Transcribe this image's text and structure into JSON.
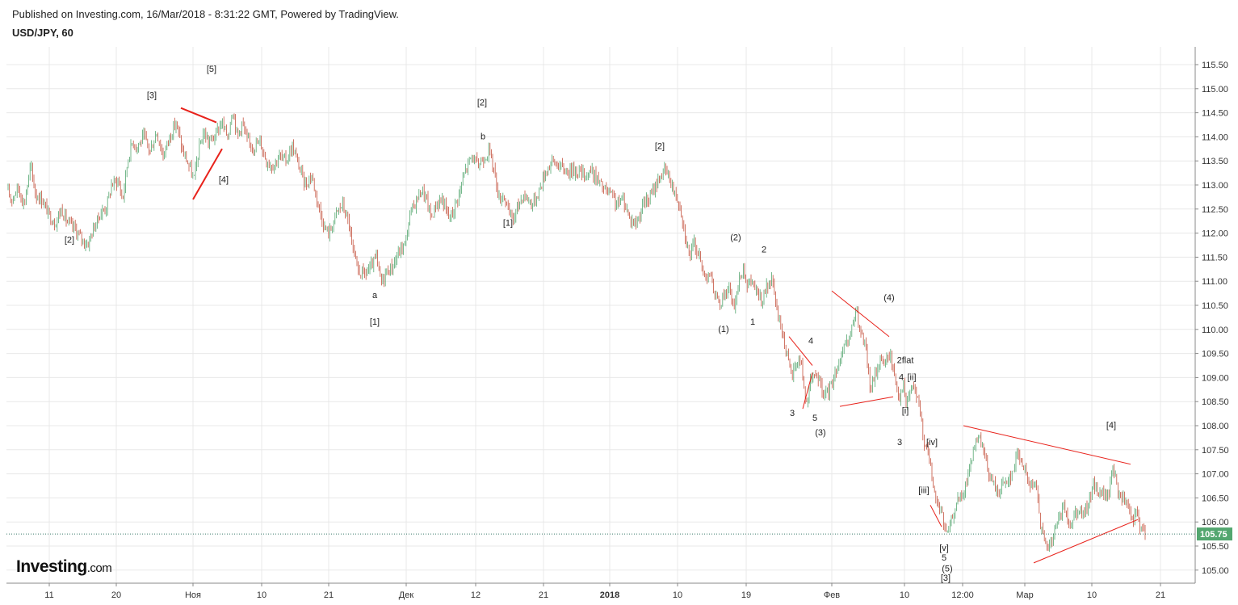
{
  "header": {
    "published": "Published on Investing.com, 16/Mar/2018 - 8:31:22 GMT, Powered by TradingView.",
    "symbol": "USD/JPY, 60"
  },
  "logo": {
    "main": "Investing",
    "suffix": ".com"
  },
  "colors": {
    "up": "#53a66f",
    "down": "#c5533f",
    "trendline": "#e8221b",
    "orange_label": "#f0a020",
    "grid": "#e8e8e8",
    "current_price_bg": "#53a66f"
  },
  "chart_data": {
    "type": "candlestick",
    "title": "USD/JPY, 60",
    "xlabel": "",
    "ylabel": "",
    "ylim": [
      104.75,
      115.75
    ],
    "grid": true,
    "y_ticks": [
      "115.50",
      "115.00",
      "114.50",
      "114.00",
      "113.50",
      "113.00",
      "112.50",
      "112.00",
      "111.50",
      "111.00",
      "110.50",
      "110.00",
      "109.50",
      "109.00",
      "108.50",
      "108.00",
      "107.50",
      "107.00",
      "106.50",
      "106.00",
      "105.50",
      "105.00"
    ],
    "x_ticks": [
      "11",
      "20",
      "Ноя",
      "10",
      "21",
      "Дек",
      "12",
      "21",
      "2018",
      "10",
      "19",
      "Фев",
      "10",
      "12:00",
      "Мар",
      "10",
      "21"
    ],
    "current_price": "105.75",
    "price_path": [
      [
        0,
        112.9
      ],
      [
        6,
        112.7
      ],
      [
        14,
        112.95
      ],
      [
        22,
        112.6
      ],
      [
        30,
        113.4
      ],
      [
        36,
        112.8
      ],
      [
        44,
        112.7
      ],
      [
        52,
        112.4
      ],
      [
        60,
        112.2
      ],
      [
        68,
        112.5
      ],
      [
        76,
        112.2
      ],
      [
        84,
        112.1
      ],
      [
        92,
        111.9
      ],
      [
        100,
        111.75
      ],
      [
        108,
        112.1
      ],
      [
        116,
        112.4
      ],
      [
        124,
        112.55
      ],
      [
        130,
        113.0
      ],
      [
        138,
        113.1
      ],
      [
        144,
        112.7
      ],
      [
        150,
        113.5
      ],
      [
        156,
        113.9
      ],
      [
        162,
        113.8
      ],
      [
        170,
        114.0
      ],
      [
        178,
        113.7
      ],
      [
        186,
        114.1
      ],
      [
        194,
        113.6
      ],
      [
        202,
        114.0
      ],
      [
        210,
        114.3
      ],
      [
        218,
        113.7
      ],
      [
        226,
        113.4
      ],
      [
        232,
        113.1
      ],
      [
        238,
        113.7
      ],
      [
        244,
        114.1
      ],
      [
        250,
        113.9
      ],
      [
        258,
        114.0
      ],
      [
        266,
        114.3
      ],
      [
        274,
        114.0
      ],
      [
        280,
        114.6
      ],
      [
        286,
        114.0
      ],
      [
        292,
        114.3
      ],
      [
        298,
        113.9
      ],
      [
        306,
        113.8
      ],
      [
        314,
        113.9
      ],
      [
        322,
        113.5
      ],
      [
        330,
        113.4
      ],
      [
        338,
        113.6
      ],
      [
        346,
        113.5
      ],
      [
        354,
        113.8
      ],
      [
        362,
        113.4
      ],
      [
        370,
        113.0
      ],
      [
        378,
        113.2
      ],
      [
        386,
        112.6
      ],
      [
        394,
        112.1
      ],
      [
        400,
        112.0
      ],
      [
        408,
        112.4
      ],
      [
        416,
        112.6
      ],
      [
        424,
        112.2
      ],
      [
        430,
        111.5
      ],
      [
        436,
        111.2
      ],
      [
        444,
        111.15
      ],
      [
        452,
        111.3
      ],
      [
        458,
        111.5
      ],
      [
        464,
        110.95
      ],
      [
        470,
        111.2
      ],
      [
        478,
        111.3
      ],
      [
        486,
        111.6
      ],
      [
        494,
        111.8
      ],
      [
        500,
        112.4
      ],
      [
        508,
        112.7
      ],
      [
        514,
        112.9
      ],
      [
        520,
        112.7
      ],
      [
        526,
        112.3
      ],
      [
        532,
        112.6
      ],
      [
        540,
        112.7
      ],
      [
        548,
        112.3
      ],
      [
        554,
        112.5
      ],
      [
        562,
        112.9
      ],
      [
        568,
        113.3
      ],
      [
        576,
        113.6
      ],
      [
        584,
        113.4
      ],
      [
        592,
        113.6
      ],
      [
        598,
        113.7
      ],
      [
        604,
        113.3
      ],
      [
        610,
        112.7
      ],
      [
        616,
        112.8
      ],
      [
        622,
        112.4
      ],
      [
        628,
        112.3
      ],
      [
        634,
        112.6
      ],
      [
        640,
        112.8
      ],
      [
        646,
        112.7
      ],
      [
        652,
        112.6
      ],
      [
        660,
        112.9
      ],
      [
        668,
        113.3
      ],
      [
        676,
        113.5
      ],
      [
        684,
        113.4
      ],
      [
        692,
        113.3
      ],
      [
        700,
        113.3
      ],
      [
        708,
        113.3
      ],
      [
        716,
        113.2
      ],
      [
        724,
        113.3
      ],
      [
        732,
        113.1
      ],
      [
        740,
        112.9
      ],
      [
        748,
        112.8
      ],
      [
        756,
        112.6
      ],
      [
        764,
        112.7
      ],
      [
        772,
        112.3
      ],
      [
        780,
        112.2
      ],
      [
        788,
        112.6
      ],
      [
        796,
        112.7
      ],
      [
        804,
        113.0
      ],
      [
        810,
        113.2
      ],
      [
        816,
        113.3
      ],
      [
        822,
        113.1
      ],
      [
        828,
        112.8
      ],
      [
        834,
        112.6
      ],
      [
        840,
        112.0
      ],
      [
        846,
        111.5
      ],
      [
        852,
        111.8
      ],
      [
        858,
        111.5
      ],
      [
        864,
        111.1
      ],
      [
        870,
        111.2
      ],
      [
        876,
        110.8
      ],
      [
        882,
        110.5
      ],
      [
        888,
        110.7
      ],
      [
        894,
        110.9
      ],
      [
        900,
        110.4
      ],
      [
        906,
        110.9
      ],
      [
        912,
        111.3
      ],
      [
        918,
        110.9
      ],
      [
        924,
        111.0
      ],
      [
        930,
        110.7
      ],
      [
        936,
        110.6
      ],
      [
        942,
        110.9
      ],
      [
        948,
        111.0
      ],
      [
        954,
        110.4
      ],
      [
        960,
        110.0
      ],
      [
        966,
        109.5
      ],
      [
        972,
        109.0
      ],
      [
        978,
        109.3
      ],
      [
        984,
        109.4
      ],
      [
        990,
        108.4
      ],
      [
        996,
        108.9
      ],
      [
        1002,
        109.1
      ],
      [
        1008,
        108.8
      ],
      [
        1014,
        108.6
      ],
      [
        1020,
        108.8
      ],
      [
        1026,
        109.1
      ],
      [
        1032,
        109.4
      ],
      [
        1038,
        109.6
      ],
      [
        1044,
        109.8
      ],
      [
        1052,
        110.4
      ],
      [
        1058,
        109.9
      ],
      [
        1064,
        109.6
      ],
      [
        1070,
        108.7
      ],
      [
        1076,
        109.1
      ],
      [
        1082,
        109.4
      ],
      [
        1088,
        109.3
      ],
      [
        1094,
        109.5
      ],
      [
        1100,
        109.0
      ],
      [
        1106,
        108.6
      ],
      [
        1110,
        108.9
      ],
      [
        1114,
        108.4
      ],
      [
        1120,
        108.8
      ],
      [
        1126,
        108.7
      ],
      [
        1132,
        108.2
      ],
      [
        1136,
        107.7
      ],
      [
        1140,
        107.6
      ],
      [
        1146,
        106.9
      ],
      [
        1152,
        106.4
      ],
      [
        1158,
        106.2
      ],
      [
        1164,
        105.7
      ],
      [
        1168,
        105.9
      ],
      [
        1174,
        106.3
      ],
      [
        1180,
        106.5
      ],
      [
        1186,
        106.6
      ],
      [
        1192,
        107.1
      ],
      [
        1198,
        107.5
      ],
      [
        1204,
        107.7
      ],
      [
        1210,
        107.5
      ],
      [
        1216,
        107.0
      ],
      [
        1222,
        106.8
      ],
      [
        1228,
        106.6
      ],
      [
        1234,
        106.8
      ],
      [
        1240,
        106.9
      ],
      [
        1246,
        107.0
      ],
      [
        1252,
        107.5
      ],
      [
        1258,
        107.2
      ],
      [
        1264,
        106.9
      ],
      [
        1270,
        106.7
      ],
      [
        1276,
        106.8
      ],
      [
        1280,
        106.0
      ],
      [
        1286,
        105.5
      ],
      [
        1292,
        105.5
      ],
      [
        1298,
        105.8
      ],
      [
        1304,
        106.1
      ],
      [
        1310,
        106.3
      ],
      [
        1316,
        105.9
      ],
      [
        1322,
        106.2
      ],
      [
        1328,
        106.3
      ],
      [
        1334,
        106.1
      ],
      [
        1340,
        106.4
      ],
      [
        1346,
        106.8
      ],
      [
        1352,
        106.6
      ],
      [
        1358,
        106.6
      ],
      [
        1364,
        106.5
      ],
      [
        1370,
        107.2
      ],
      [
        1376,
        106.6
      ],
      [
        1382,
        106.5
      ],
      [
        1388,
        106.3
      ],
      [
        1394,
        106.0
      ],
      [
        1400,
        106.2
      ],
      [
        1406,
        105.8
      ],
      [
        1410,
        105.75
      ]
    ],
    "wave_labels": [
      {
        "text": "[5]",
        "x": 262,
        "y": 115.35,
        "color": "#222"
      },
      {
        "text": "[3]",
        "x": 188,
        "y": 114.8,
        "color": "#222"
      },
      {
        "text": "[4]",
        "x": 277,
        "y": 113.05,
        "color": "#222"
      },
      {
        "text": "[2]",
        "x": 86,
        "y": 111.8,
        "color": "#222"
      },
      {
        "text": "[2]",
        "x": 597,
        "y": 114.65,
        "color": "#f0a020"
      },
      {
        "text": "b",
        "x": 598,
        "y": 113.95,
        "color": "#222"
      },
      {
        "text": "[1]",
        "x": 629,
        "y": 112.15,
        "color": "#222"
      },
      {
        "text": "a",
        "x": 464,
        "y": 110.65,
        "color": "#222"
      },
      {
        "text": "[1]",
        "x": 464,
        "y": 110.1,
        "color": "#f0a020"
      },
      {
        "text": "[2]",
        "x": 817,
        "y": 113.75,
        "color": "#222"
      },
      {
        "text": "(2)",
        "x": 911,
        "y": 111.85,
        "color": "#222"
      },
      {
        "text": "2",
        "x": 946,
        "y": 111.6,
        "color": "#222"
      },
      {
        "text": "1",
        "x": 932,
        "y": 110.1,
        "color": "#222"
      },
      {
        "text": "(1)",
        "x": 896,
        "y": 109.95,
        "color": "#222"
      },
      {
        "text": "(4)",
        "x": 1101,
        "y": 110.6,
        "color": "#222"
      },
      {
        "text": "4",
        "x": 1004,
        "y": 109.7,
        "color": "#222"
      },
      {
        "text": "3",
        "x": 981,
        "y": 108.2,
        "color": "#222"
      },
      {
        "text": "5",
        "x": 1009,
        "y": 108.1,
        "color": "#222"
      },
      {
        "text": "(3)",
        "x": 1016,
        "y": 107.8,
        "color": "#222"
      },
      {
        "text": "2flat",
        "x": 1121,
        "y": 109.3,
        "color": "#222"
      },
      {
        "text": "4",
        "x": 1116,
        "y": 108.95,
        "color": "#222"
      },
      {
        "text": "[ii]",
        "x": 1129,
        "y": 108.95,
        "color": "#222"
      },
      {
        "text": "[i]",
        "x": 1121,
        "y": 108.25,
        "color": "#222"
      },
      {
        "text": "3",
        "x": 1114,
        "y": 107.6,
        "color": "#222"
      },
      {
        "text": "[iv]",
        "x": 1154,
        "y": 107.6,
        "color": "#222"
      },
      {
        "text": "[4]",
        "x": 1376,
        "y": 107.95,
        "color": "#222"
      },
      {
        "text": "[iii]",
        "x": 1144,
        "y": 106.6,
        "color": "#222"
      },
      {
        "text": "[v]",
        "x": 1169,
        "y": 105.4,
        "color": "#222"
      },
      {
        "text": "5",
        "x": 1169,
        "y": 105.2,
        "color": "#222"
      },
      {
        "text": "(5)",
        "x": 1173,
        "y": 104.97,
        "color": "#222"
      },
      {
        "text": "[3]",
        "x": 1171,
        "y": 104.78,
        "color": "#222"
      }
    ],
    "trendlines": [
      {
        "x1": 224,
        "y1": 114.6,
        "x2": 268,
        "y2": 114.3,
        "width": 2
      },
      {
        "x1": 239,
        "y1": 112.7,
        "x2": 275,
        "y2": 113.75,
        "width": 2
      },
      {
        "x1": 1030,
        "y1": 110.8,
        "x2": 1101,
        "y2": 109.85,
        "width": 1
      },
      {
        "x1": 1040,
        "y1": 108.4,
        "x2": 1106,
        "y2": 108.6,
        "width": 1
      },
      {
        "x1": 977,
        "y1": 109.85,
        "x2": 1006,
        "y2": 109.25,
        "width": 1
      },
      {
        "x1": 994,
        "y1": 108.35,
        "x2": 1006,
        "y2": 109.1,
        "width": 1
      },
      {
        "x1": 1152,
        "y1": 106.35,
        "x2": 1166,
        "y2": 105.9,
        "width": 1
      },
      {
        "x1": 1193,
        "y1": 108.0,
        "x2": 1400,
        "y2": 107.2,
        "width": 1
      },
      {
        "x1": 1280,
        "y1": 105.15,
        "x2": 1409,
        "y2": 106.05,
        "width": 1
      }
    ]
  }
}
